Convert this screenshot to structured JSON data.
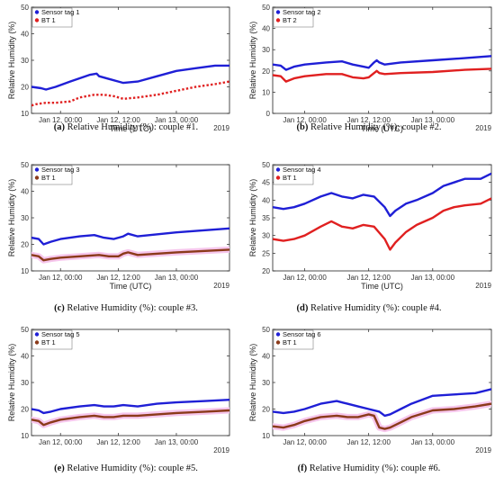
{
  "chart_data": [
    {
      "type": "line",
      "panel": "a",
      "caption_label": "(a)",
      "caption_text": "Relative Humidity (%): couple #1.",
      "ylabel": "Relative Humidity (%)",
      "xlabel": "Time (UTC)",
      "year_label": "2019",
      "ylim": [
        10,
        50
      ],
      "yticks": [
        10,
        20,
        30,
        40,
        50
      ],
      "xlim": [
        -6,
        35
      ],
      "xticks": [
        {
          "x": 0,
          "label": "Jan 12, 00:00"
        },
        {
          "x": 12,
          "label": "Jan 12, 12:00"
        },
        {
          "x": 24,
          "label": "Jan 13, 00:00"
        }
      ],
      "legend_position": "top-left",
      "series": [
        {
          "name": "Sensor tag 1",
          "color": "#1f1fd6",
          "style": "line",
          "x": [
            -6,
            -4,
            -3,
            -1,
            2,
            6,
            7.5,
            8,
            10,
            12,
            13,
            16,
            20,
            24,
            28,
            32,
            35
          ],
          "y": [
            20,
            19.5,
            19,
            20,
            22,
            24.5,
            25,
            24,
            23,
            22,
            21.5,
            22,
            24,
            26,
            27,
            28,
            28
          ]
        },
        {
          "name": "BT 1",
          "color": "#e02020",
          "style": "dotted",
          "x": [
            -6,
            -5,
            -3,
            -1,
            2,
            4,
            7,
            9,
            11,
            13,
            16,
            20,
            24,
            28,
            32,
            35
          ],
          "y": [
            13,
            13.5,
            14,
            14,
            14.5,
            16,
            17,
            17,
            16.5,
            15.5,
            16,
            17,
            18.5,
            20,
            21,
            22
          ]
        }
      ]
    },
    {
      "type": "line",
      "panel": "b",
      "caption_label": "(b)",
      "caption_text": "Relative Humidity (%): couple #2.",
      "ylabel": "Relative Humidity (%)",
      "xlabel": "Time (UTC)",
      "year_label": "2019",
      "ylim": [
        0,
        50
      ],
      "yticks": [
        0,
        10,
        20,
        30,
        40,
        50
      ],
      "xlim": [
        -6,
        35
      ],
      "xticks": [
        {
          "x": 0,
          "label": "Jan 12, 00:00"
        },
        {
          "x": 12,
          "label": "Jan 12, 12:00"
        },
        {
          "x": 24,
          "label": "Jan 13, 00:00"
        }
      ],
      "legend_position": "top-left",
      "series": [
        {
          "name": "Sensor tag 2",
          "color": "#1f1fd6",
          "style": "line",
          "x": [
            -6,
            -4.5,
            -3.5,
            -2,
            0,
            4,
            7,
            9,
            11,
            12,
            13,
            13.5,
            14,
            15,
            18,
            24,
            30,
            35
          ],
          "y": [
            23,
            22.5,
            20.5,
            22,
            23,
            24,
            24.5,
            23,
            22,
            21.5,
            24,
            25,
            24,
            23,
            24,
            25,
            26,
            27
          ]
        },
        {
          "name": "BT 2",
          "color": "#e02020",
          "style": "line",
          "x": [
            -6,
            -4.5,
            -3.5,
            -2,
            0,
            4,
            7,
            9,
            11,
            12,
            13,
            13.5,
            14,
            15,
            18,
            24,
            30,
            35
          ],
          "y": [
            18,
            17.5,
            15,
            16.5,
            17.5,
            18.5,
            18.5,
            17,
            16.5,
            17,
            19,
            20,
            19,
            18.5,
            19,
            19.5,
            20.5,
            21
          ]
        }
      ]
    },
    {
      "type": "line",
      "panel": "c",
      "caption_label": "(c)",
      "caption_text": "Relative Humidity (%): couple #3.",
      "ylabel": "Relative Humidity (%)",
      "xlabel": "Time (UTC)",
      "year_label": "2019",
      "ylim": [
        10,
        50
      ],
      "yticks": [
        10,
        20,
        30,
        40,
        50
      ],
      "xlim": [
        -6,
        35
      ],
      "xticks": [
        {
          "x": 0,
          "label": "Jan 12, 00:00"
        },
        {
          "x": 12,
          "label": "Jan 12, 12:00"
        },
        {
          "x": 24,
          "label": "Jan 13, 00:00"
        }
      ],
      "legend_position": "top-left",
      "series": [
        {
          "name": "Sensor tag 3",
          "color": "#1f1fd6",
          "style": "line",
          "x": [
            -6,
            -4.5,
            -3.5,
            -2,
            0,
            4,
            7,
            9,
            11,
            12,
            13,
            14,
            16,
            24,
            35
          ],
          "y": [
            22.5,
            22,
            20,
            21,
            22,
            23,
            23.5,
            22.5,
            22,
            22.5,
            23,
            24,
            23,
            24.5,
            26
          ]
        },
        {
          "name": "BT 1",
          "color": "#e02020",
          "style": "line",
          "x": [
            -6,
            -4.5,
            -3.5,
            -2,
            0,
            4,
            8,
            10,
            12,
            13,
            14,
            16,
            24,
            35
          ],
          "y": [
            16,
            15.5,
            14,
            14.5,
            15,
            15.5,
            16,
            15.5,
            15.5,
            16.5,
            17,
            16,
            17,
            18
          ]
        }
      ]
    },
    {
      "type": "line",
      "panel": "d",
      "caption_label": "(d)",
      "caption_text": "Relative Humidity (%): couple #4.",
      "ylabel": "Relative Humidity (%)",
      "xlabel": "Time (UTC)",
      "year_label": "2019",
      "ylim": [
        20,
        50
      ],
      "yticks": [
        20,
        25,
        30,
        35,
        40,
        45,
        50
      ],
      "xlim": [
        -6,
        35
      ],
      "xticks": [
        {
          "x": 0,
          "label": "Jan 12, 00:00"
        },
        {
          "x": 12,
          "label": "Jan 12, 12:00"
        },
        {
          "x": 24,
          "label": "Jan 13, 00:00"
        }
      ],
      "legend_position": "top-left",
      "series": [
        {
          "name": "Sensor tag 4",
          "color": "#1f1fd6",
          "style": "line",
          "x": [
            -6,
            -4,
            -2,
            0,
            3,
            5,
            7,
            9,
            11,
            13,
            15,
            16,
            17,
            19,
            21,
            24,
            26,
            28,
            30,
            33,
            35
          ],
          "y": [
            38,
            37.5,
            38,
            39,
            41,
            42,
            41,
            40.5,
            41.5,
            41,
            38,
            35.5,
            37,
            39,
            40,
            42,
            44,
            45,
            46,
            46,
            47.5
          ]
        },
        {
          "name": "BT 1",
          "color": "#e02020",
          "style": "line",
          "x": [
            -6,
            -4,
            -2,
            0,
            3,
            5,
            7,
            9,
            11,
            13,
            15,
            16,
            17,
            19,
            21,
            24,
            26,
            28,
            30,
            33,
            35
          ],
          "y": [
            29,
            28.5,
            29,
            30,
            32.5,
            34,
            32.5,
            32,
            33,
            32.5,
            29,
            26,
            28,
            31,
            33,
            35,
            37,
            38,
            38.5,
            39,
            40.5
          ]
        }
      ]
    },
    {
      "type": "line",
      "panel": "e",
      "caption_label": "(e)",
      "caption_text": "Relative Humidity (%): couple #5.",
      "ylabel": "Relative Humidity (%)",
      "xlabel": "",
      "year_label": "2019",
      "ylim": [
        10,
        50
      ],
      "yticks": [
        10,
        20,
        30,
        40,
        50
      ],
      "xlim": [
        -6,
        35
      ],
      "xticks": [
        {
          "x": 0,
          "label": "Jan 12, 00:00"
        },
        {
          "x": 12,
          "label": "Jan 12, 12:00"
        },
        {
          "x": 24,
          "label": "Jan 13, 00:00"
        }
      ],
      "legend_position": "top-left",
      "series": [
        {
          "name": "Sensor tag 5",
          "color": "#1f1fd6",
          "style": "line",
          "x": [
            -6,
            -4.5,
            -3.5,
            -2,
            0,
            4,
            7,
            9,
            11,
            13,
            16,
            20,
            24,
            30,
            35
          ],
          "y": [
            20,
            19.5,
            18.5,
            19,
            20,
            21,
            21.5,
            21,
            21,
            21.5,
            21,
            22,
            22.5,
            23,
            23.5
          ]
        },
        {
          "name": "BT 1",
          "color": "#e02020",
          "style": "line",
          "x": [
            -6,
            -4.5,
            -3.5,
            -2,
            0,
            4,
            7,
            9,
            11,
            13,
            16,
            20,
            24,
            30,
            35
          ],
          "y": [
            16,
            15.5,
            14,
            15,
            16,
            17,
            17.5,
            17,
            17,
            17.5,
            17.5,
            18,
            18.5,
            19,
            19.5
          ]
        }
      ]
    },
    {
      "type": "line",
      "panel": "f",
      "caption_label": "(f)",
      "caption_text": "Relative Humidity (%): couple #6.",
      "ylabel": "Relative Humidity (%)",
      "xlabel": "",
      "year_label": "2019",
      "ylim": [
        10,
        50
      ],
      "yticks": [
        10,
        20,
        30,
        40,
        50
      ],
      "xlim": [
        -6,
        35
      ],
      "xticks": [
        {
          "x": 0,
          "label": "Jan 12, 00:00"
        },
        {
          "x": 12,
          "label": "Jan 12, 12:00"
        },
        {
          "x": 24,
          "label": "Jan 13, 00:00"
        }
      ],
      "legend_position": "top-left",
      "series": [
        {
          "name": "Sensor tag 6",
          "color": "#1f1fd6",
          "style": "line",
          "x": [
            -6,
            -4,
            -2,
            0,
            3,
            6,
            8,
            10,
            12,
            14,
            15,
            16,
            18,
            20,
            24,
            28,
            32,
            35
          ],
          "y": [
            19,
            18.5,
            19,
            20,
            22,
            23,
            22,
            21,
            20,
            19,
            17.5,
            18,
            20,
            22,
            25,
            25.5,
            26,
            27.5
          ]
        },
        {
          "name": "BT 1",
          "color": "#e02020",
          "style": "line",
          "x": [
            -6,
            -4,
            -2,
            0,
            3,
            6,
            8,
            10,
            12,
            13,
            14,
            15,
            16,
            18,
            20,
            24,
            28,
            32,
            35
          ],
          "y": [
            13.5,
            13,
            14,
            15.5,
            17,
            17.5,
            17,
            17,
            18,
            17.5,
            13,
            12.5,
            13,
            15,
            17,
            19.5,
            20,
            21,
            22
          ]
        }
      ]
    }
  ]
}
